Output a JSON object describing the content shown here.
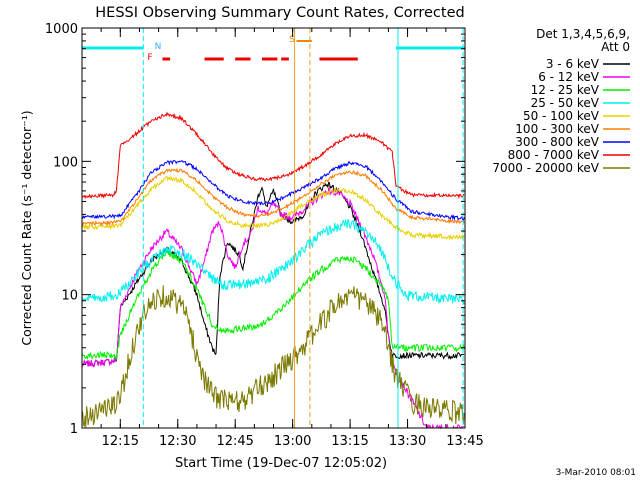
{
  "chart_data": {
    "type": "line",
    "title": "HESSI Observing Summary Count Rates, Corrected",
    "xlabel": "Start Time (19-Dec-07 12:05:02)",
    "ylabel": "Corrected Count Rate (s⁻¹ detector⁻¹)",
    "yscale": "log",
    "ylim": [
      1,
      1000
    ],
    "xlim_minutes": [
      0,
      100
    ],
    "x_ticks": [
      {
        "minute": 10,
        "label": "12:15"
      },
      {
        "minute": 25,
        "label": "12:30"
      },
      {
        "minute": 40,
        "label": "12:45"
      },
      {
        "minute": 55,
        "label": "13:00"
      },
      {
        "minute": 70,
        "label": "13:15"
      },
      {
        "minute": 85,
        "label": "13:30"
      },
      {
        "minute": 100,
        "label": "13:45"
      }
    ],
    "y_ticks": [
      {
        "value": 1,
        "label": "1"
      },
      {
        "value": 10,
        "label": "10"
      },
      {
        "value": 100,
        "label": "100"
      },
      {
        "value": 1000,
        "label": "1000"
      }
    ],
    "legend_header": [
      "Det 1,3,4,5,6,9,",
      "Att 0"
    ],
    "legend_position": "right",
    "footer_date": "3-Mar-2010 08:01",
    "markers": [
      {
        "label": "N",
        "color": "#33b0ff"
      },
      {
        "label": "F",
        "color": "#ee1111"
      },
      {
        "label": "S",
        "color": "#e88a10"
      }
    ],
    "night_bars_minutes": [
      [
        0,
        16
      ],
      [
        82,
        100
      ]
    ],
    "flag_segments_minutes": [
      [
        21,
        23
      ],
      [
        32,
        37
      ],
      [
        40,
        44
      ],
      [
        47,
        51
      ],
      [
        52,
        54
      ],
      [
        62,
        72
      ]
    ],
    "saa_segment_minutes": [
      56,
      60
    ],
    "vertical_lines": [
      {
        "minute": 16,
        "style": "dashed",
        "color": "#00eeee"
      },
      {
        "minute": 55.5,
        "style": "solid",
        "color": "#e8a028"
      },
      {
        "minute": 59.5,
        "style": "dashed",
        "color": "#e8a028"
      },
      {
        "minute": 82.5,
        "style": "solid",
        "color": "#00eeee"
      },
      {
        "minute": 99.5,
        "style": "dashed",
        "color": "#00eeee"
      }
    ],
    "series": [
      {
        "name": "3 - 6 keV",
        "color": "#000000",
        "noise": 0.05,
        "points": [
          [
            0,
            3
          ],
          [
            9,
            3.2
          ],
          [
            10,
            8
          ],
          [
            14,
            12
          ],
          [
            18,
            18
          ],
          [
            22,
            22
          ],
          [
            26,
            18
          ],
          [
            30,
            10
          ],
          [
            32,
            6
          ],
          [
            34,
            4
          ],
          [
            35,
            3.5
          ],
          [
            36,
            14
          ],
          [
            38,
            25
          ],
          [
            41,
            20
          ],
          [
            42,
            16
          ],
          [
            44,
            30
          ],
          [
            46,
            55
          ],
          [
            47,
            65
          ],
          [
            48,
            45
          ],
          [
            50,
            60
          ],
          [
            52,
            40
          ],
          [
            55,
            35
          ],
          [
            58,
            40
          ],
          [
            61,
            58
          ],
          [
            64,
            68
          ],
          [
            67,
            60
          ],
          [
            70,
            45
          ],
          [
            73,
            28
          ],
          [
            76,
            15
          ],
          [
            79,
            8
          ],
          [
            80,
            5
          ],
          [
            81,
            3.5
          ],
          [
            100,
            3.5
          ]
        ]
      },
      {
        "name": "6 - 12 keV",
        "color": "#ee00ee",
        "noise": 0.06,
        "points": [
          [
            0,
            3
          ],
          [
            9,
            3.2
          ],
          [
            10,
            8
          ],
          [
            14,
            14
          ],
          [
            18,
            22
          ],
          [
            22,
            30
          ],
          [
            26,
            22
          ],
          [
            30,
            12
          ],
          [
            32,
            18
          ],
          [
            34,
            30
          ],
          [
            36,
            35
          ],
          [
            38,
            20
          ],
          [
            40,
            16
          ],
          [
            42,
            24
          ],
          [
            44,
            28
          ],
          [
            46,
            45
          ],
          [
            48,
            40
          ],
          [
            50,
            48
          ],
          [
            52,
            40
          ],
          [
            55,
            38
          ],
          [
            58,
            44
          ],
          [
            61,
            52
          ],
          [
            64,
            60
          ],
          [
            67,
            58
          ],
          [
            70,
            48
          ],
          [
            73,
            32
          ],
          [
            76,
            20
          ],
          [
            79,
            10
          ],
          [
            80,
            5
          ],
          [
            81,
            3
          ],
          [
            90,
            1
          ],
          [
            100,
            1
          ]
        ]
      },
      {
        "name": "12 - 25 keV",
        "color": "#00ee00",
        "noise": 0.06,
        "points": [
          [
            0,
            3.5
          ],
          [
            9,
            3.5
          ],
          [
            10,
            5
          ],
          [
            14,
            9
          ],
          [
            18,
            15
          ],
          [
            22,
            21
          ],
          [
            26,
            18
          ],
          [
            30,
            11
          ],
          [
            34,
            6
          ],
          [
            36,
            5.5
          ],
          [
            40,
            5.5
          ],
          [
            46,
            5.8
          ],
          [
            50,
            7
          ],
          [
            54,
            9
          ],
          [
            58,
            12
          ],
          [
            62,
            15
          ],
          [
            66,
            18
          ],
          [
            70,
            19
          ],
          [
            74,
            16
          ],
          [
            78,
            12
          ],
          [
            80,
            9
          ],
          [
            81,
            4
          ],
          [
            100,
            4
          ]
        ]
      },
      {
        "name": "25 - 50 keV",
        "color": "#00eeee",
        "noise": 0.09,
        "points": [
          [
            0,
            9
          ],
          [
            9,
            10
          ],
          [
            12,
            12
          ],
          [
            16,
            16
          ],
          [
            20,
            20
          ],
          [
            24,
            22
          ],
          [
            28,
            19
          ],
          [
            32,
            15
          ],
          [
            36,
            12
          ],
          [
            42,
            12
          ],
          [
            48,
            13
          ],
          [
            54,
            17
          ],
          [
            58,
            22
          ],
          [
            62,
            28
          ],
          [
            66,
            32
          ],
          [
            70,
            34
          ],
          [
            74,
            30
          ],
          [
            78,
            22
          ],
          [
            81,
            14
          ],
          [
            84,
            10
          ],
          [
            100,
            9
          ]
        ]
      },
      {
        "name": "50 - 100 keV",
        "color": "#e8d000",
        "noise": 0.04,
        "points": [
          [
            0,
            32
          ],
          [
            10,
            33
          ],
          [
            14,
            45
          ],
          [
            18,
            62
          ],
          [
            22,
            75
          ],
          [
            26,
            72
          ],
          [
            30,
            58
          ],
          [
            34,
            44
          ],
          [
            38,
            36
          ],
          [
            42,
            33
          ],
          [
            46,
            33
          ],
          [
            50,
            34
          ],
          [
            54,
            40
          ],
          [
            58,
            48
          ],
          [
            62,
            55
          ],
          [
            66,
            60
          ],
          [
            70,
            60
          ],
          [
            74,
            52
          ],
          [
            78,
            40
          ],
          [
            82,
            32
          ],
          [
            86,
            28
          ],
          [
            100,
            27
          ]
        ]
      },
      {
        "name": "100 - 300 keV",
        "color": "#ff7a00",
        "noise": 0.03,
        "points": [
          [
            0,
            34
          ],
          [
            10,
            35
          ],
          [
            14,
            50
          ],
          [
            18,
            72
          ],
          [
            22,
            85
          ],
          [
            26,
            86
          ],
          [
            30,
            72
          ],
          [
            34,
            55
          ],
          [
            38,
            45
          ],
          [
            42,
            40
          ],
          [
            46,
            39
          ],
          [
            50,
            41
          ],
          [
            54,
            47
          ],
          [
            58,
            55
          ],
          [
            62,
            66
          ],
          [
            66,
            78
          ],
          [
            70,
            84
          ],
          [
            74,
            78
          ],
          [
            78,
            62
          ],
          [
            82,
            44
          ],
          [
            86,
            38
          ],
          [
            100,
            35
          ]
        ]
      },
      {
        "name": "300 - 800 keV",
        "color": "#0000ff",
        "noise": 0.03,
        "points": [
          [
            0,
            38
          ],
          [
            10,
            39
          ],
          [
            14,
            55
          ],
          [
            18,
            82
          ],
          [
            22,
            98
          ],
          [
            26,
            100
          ],
          [
            30,
            88
          ],
          [
            34,
            68
          ],
          [
            38,
            55
          ],
          [
            42,
            50
          ],
          [
            46,
            48
          ],
          [
            50,
            50
          ],
          [
            54,
            56
          ],
          [
            58,
            64
          ],
          [
            62,
            74
          ],
          [
            66,
            88
          ],
          [
            70,
            98
          ],
          [
            74,
            92
          ],
          [
            78,
            72
          ],
          [
            82,
            52
          ],
          [
            86,
            42
          ],
          [
            100,
            37
          ]
        ]
      },
      {
        "name": "800 - 7000 keV",
        "color": "#ee0000",
        "noise": 0.03,
        "points": [
          [
            0,
            54
          ],
          [
            8,
            56
          ],
          [
            9,
            60
          ],
          [
            10,
            130
          ],
          [
            14,
            160
          ],
          [
            18,
            200
          ],
          [
            22,
            225
          ],
          [
            26,
            210
          ],
          [
            30,
            160
          ],
          [
            34,
            115
          ],
          [
            38,
            88
          ],
          [
            42,
            78
          ],
          [
            46,
            73
          ],
          [
            50,
            74
          ],
          [
            54,
            80
          ],
          [
            58,
            92
          ],
          [
            62,
            110
          ],
          [
            66,
            135
          ],
          [
            70,
            155
          ],
          [
            74,
            158
          ],
          [
            78,
            140
          ],
          [
            81,
            118
          ],
          [
            82,
            65
          ],
          [
            86,
            56
          ],
          [
            100,
            55
          ]
        ]
      },
      {
        "name": "7000 - 20000 keV",
        "color": "#7a7a00",
        "noise": 0.2,
        "points": [
          [
            0,
            1.2
          ],
          [
            5,
            1.4
          ],
          [
            9,
            1.5
          ],
          [
            10,
            1.8
          ],
          [
            12,
            3
          ],
          [
            14,
            5
          ],
          [
            16,
            7
          ],
          [
            18,
            8.5
          ],
          [
            20,
            10
          ],
          [
            22,
            10
          ],
          [
            26,
            8.5
          ],
          [
            28,
            6
          ],
          [
            30,
            3.5
          ],
          [
            32,
            2.4
          ],
          [
            34,
            1.8
          ],
          [
            38,
            1.6
          ],
          [
            42,
            1.6
          ],
          [
            46,
            2
          ],
          [
            50,
            2.5
          ],
          [
            54,
            3.2
          ],
          [
            58,
            4.2
          ],
          [
            62,
            6
          ],
          [
            66,
            8.5
          ],
          [
            70,
            10
          ],
          [
            74,
            9
          ],
          [
            78,
            6.5
          ],
          [
            80,
            4
          ],
          [
            82,
            2.5
          ],
          [
            86,
            1.6
          ],
          [
            92,
            1.4
          ],
          [
            100,
            1.3
          ]
        ]
      }
    ]
  }
}
